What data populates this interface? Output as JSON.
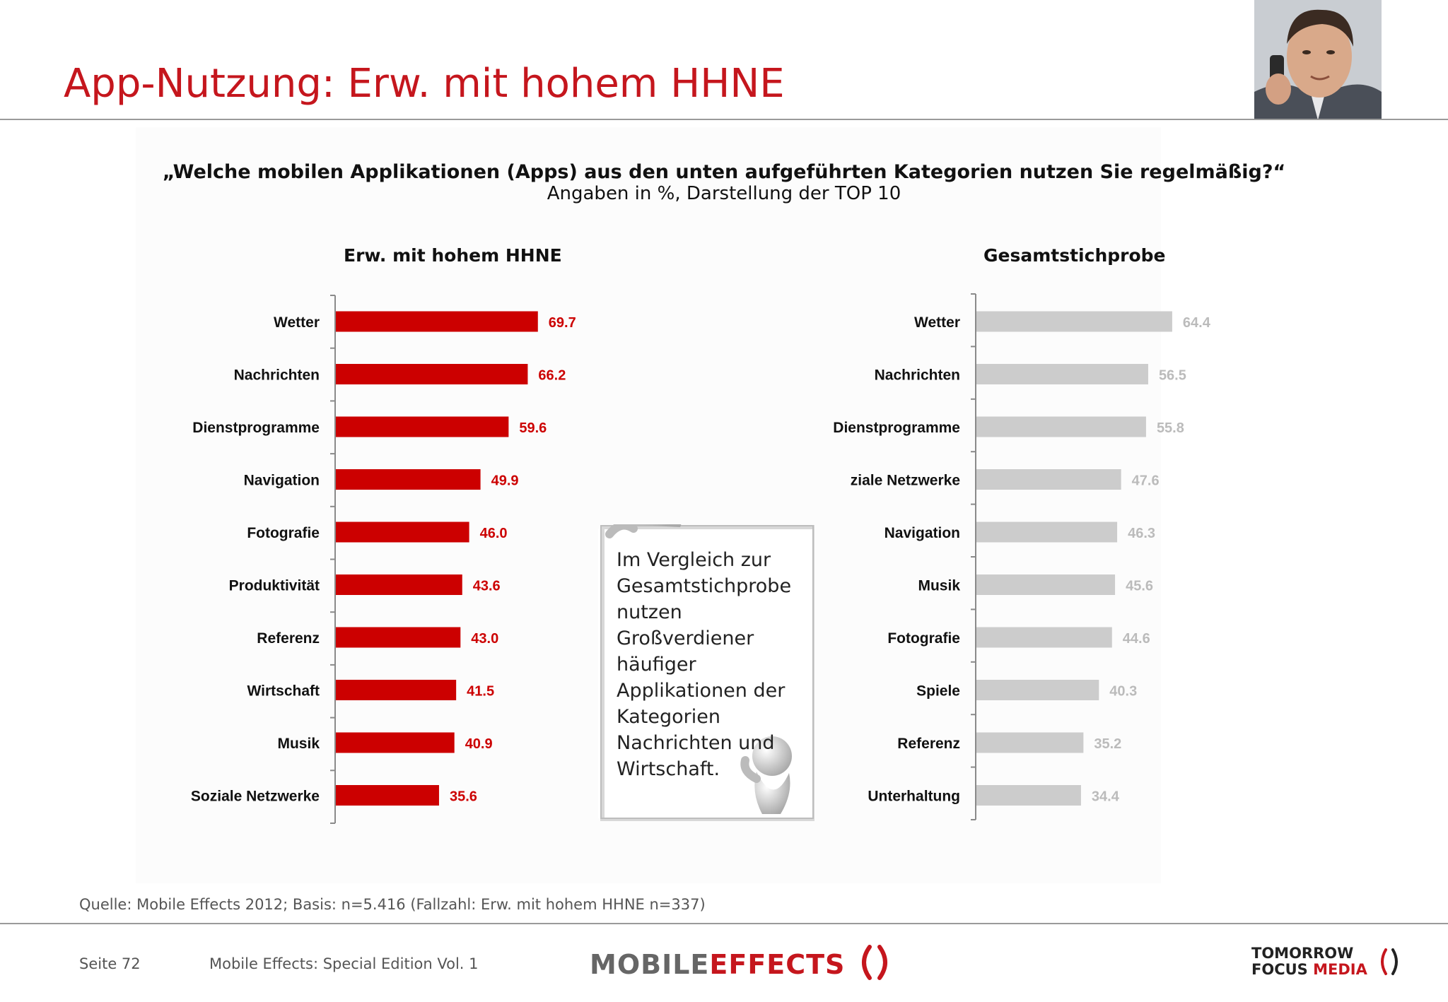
{
  "header": {
    "title": "App-Nutzung: Erw. mit hohem HHNE"
  },
  "question": "„Welche mobilen Applikationen (Apps) aus den unten aufgeführten Kategorien nutzen Sie regelmäßig?“",
  "subtitle": "Angaben in %, Darstellung der TOP 10",
  "chart_data": [
    {
      "type": "bar",
      "orientation": "horizontal",
      "title": "Erw. mit hohem HHNE",
      "categories": [
        "Wetter",
        "Nachrichten",
        "Dienstprogramme",
        "Navigation",
        "Fotografie",
        "Produktivität",
        "Referenz",
        "Wirtschaft",
        "Musik",
        "Soziale Netzwerke"
      ],
      "values": [
        69.7,
        66.2,
        59.6,
        49.9,
        46.0,
        43.6,
        43.0,
        41.5,
        40.9,
        35.6
      ],
      "value_labels": [
        "69.7",
        "66.2",
        "59.6",
        "49.9",
        "46.0",
        "43.6",
        "43.0",
        "41.5",
        "40.9",
        "35.6"
      ],
      "color": "#cc0000",
      "xlim": [
        0,
        100
      ]
    },
    {
      "type": "bar",
      "orientation": "horizontal",
      "title": "Gesamtstichprobe",
      "categories": [
        "Wetter",
        "Nachrichten",
        "Dienstprogramme",
        "ziale Netzwerke",
        "Navigation",
        "Musik",
        "Fotografie",
        "Spiele",
        "Referenz",
        "Unterhaltung"
      ],
      "values": [
        64.4,
        56.5,
        55.8,
        47.6,
        46.3,
        45.6,
        44.6,
        40.3,
        35.2,
        34.4
      ],
      "value_labels": [
        "64.4",
        "56.5",
        "55.8",
        "47.6",
        "46.3",
        "45.6",
        "44.6",
        "40.3",
        "35.2",
        "34.4"
      ],
      "color": "#cccccc",
      "xlim": [
        0,
        100
      ]
    }
  ],
  "callout": {
    "text": "Im Vergleich zur Gesamtstichprobe nutzen Großverdiener häufiger Applikationen der Kategorien Nachrichten und Wirtschaft."
  },
  "source": "Quelle: Mobile Effects 2012; Basis: n=5.416 (Fallzahl: Erw. mit hohem HHNE n=337)",
  "footer": {
    "page": "Seite 72",
    "edition": "Mobile Effects: Special Edition Vol. 1",
    "logo_mobile": "MOBILE",
    "logo_effects": "EFFECTS",
    "logo_tomorrow": "TOMORROW",
    "logo_focus": "FOCUS",
    "logo_media": "MEDIA"
  },
  "colors": {
    "accent": "#c5161d",
    "bar_primary": "#cc0000",
    "bar_secondary": "#cccccc"
  }
}
